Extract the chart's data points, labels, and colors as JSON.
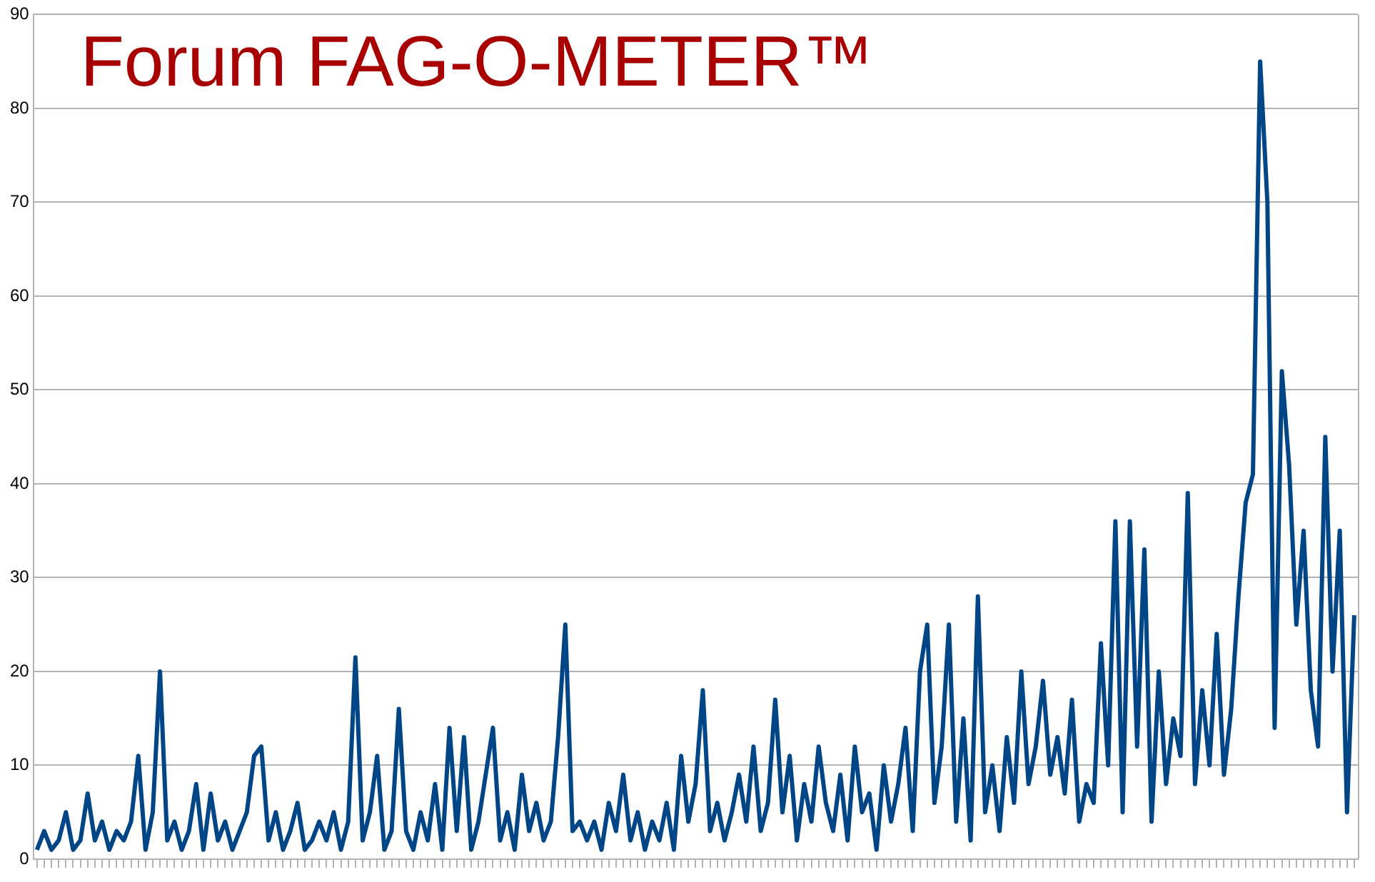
{
  "chart_data": {
    "type": "line",
    "title": "Forum FAG-O-METER™",
    "categories": [
      null,
      null,
      null,
      null,
      null,
      null,
      null,
      null,
      null,
      null,
      null,
      null,
      null,
      null,
      null,
      null,
      null,
      null,
      null,
      null,
      null,
      null,
      null,
      null,
      null,
      null,
      null,
      null,
      null,
      null,
      null,
      null,
      null,
      null,
      null,
      null,
      null,
      null,
      null,
      null,
      null,
      null,
      null,
      null,
      null,
      null,
      null,
      null,
      null,
      null,
      null,
      null,
      null,
      null,
      null,
      null,
      null,
      null,
      null,
      null,
      null,
      null,
      null,
      null,
      null,
      null,
      null,
      null,
      null,
      null,
      null,
      null,
      null,
      null,
      null,
      null,
      null,
      null,
      null,
      null,
      null,
      null,
      null,
      null,
      null,
      null,
      null,
      null,
      null,
      null,
      null,
      null,
      null,
      null,
      null,
      null,
      null,
      null,
      null,
      null,
      null,
      null,
      null,
      null,
      null,
      null,
      null,
      null,
      null,
      null,
      null,
      null,
      null,
      null,
      null,
      null,
      null,
      null,
      null,
      null,
      null,
      null,
      null,
      null,
      null,
      null,
      null,
      null,
      null,
      null,
      null,
      null,
      null,
      null,
      null,
      null,
      null,
      null,
      null,
      null,
      null,
      null,
      null,
      null,
      null,
      null,
      null,
      null,
      null,
      null,
      null,
      null,
      null,
      null,
      null,
      null,
      null,
      null,
      null,
      null,
      null,
      null,
      null,
      null,
      null,
      null,
      null,
      null,
      null,
      null,
      null,
      null,
      null,
      null,
      null,
      null,
      null,
      null,
      null,
      null,
      null,
      null,
      null
    ],
    "series": [
      {
        "color": "#004586",
        "values": [
          1,
          3,
          1,
          2,
          5,
          1,
          2,
          7,
          2,
          4,
          1,
          3,
          2,
          4,
          11,
          1,
          5,
          20,
          2,
          4,
          1,
          3,
          8,
          1,
          7,
          2,
          4,
          1,
          3,
          5,
          11,
          12,
          2,
          5,
          1,
          3,
          6,
          1,
          2,
          4,
          2,
          5,
          1,
          4,
          21.5,
          2,
          5,
          11,
          1,
          3,
          16,
          3,
          1,
          5,
          2,
          8,
          1,
          14,
          3,
          13,
          1,
          4,
          9,
          14,
          2,
          5,
          1,
          9,
          3,
          6,
          2,
          4,
          13,
          25,
          3,
          4,
          2,
          4,
          1,
          6,
          3,
          9,
          2,
          5,
          1,
          4,
          2,
          6,
          1,
          11,
          4,
          8,
          18,
          3,
          6,
          2,
          5,
          9,
          4,
          12,
          3,
          6,
          17,
          5,
          11,
          2,
          8,
          4,
          12,
          6,
          3,
          9,
          2,
          12,
          5,
          7,
          1,
          10,
          4,
          8,
          14,
          3,
          20,
          25,
          6,
          12,
          25,
          4,
          15,
          2,
          28,
          5,
          10,
          3,
          13,
          6,
          20,
          8,
          12,
          19,
          9,
          13,
          7,
          17,
          4,
          8,
          6,
          23,
          10,
          36,
          5,
          36,
          12,
          33,
          4,
          20,
          8,
          15,
          11,
          39,
          8,
          18,
          10,
          24,
          9,
          16,
          28,
          38,
          41,
          85,
          70,
          14,
          52,
          42,
          25,
          35,
          18,
          12,
          45,
          20,
          35,
          5,
          26
        ]
      }
    ],
    "ylim": [
      0,
      90
    ],
    "yticks": [
      0,
      10,
      20,
      30,
      40,
      50,
      60,
      70,
      80,
      90
    ],
    "grid": "y",
    "marker": "none",
    "line_style": "solid",
    "tick_labels": "y",
    "legend": false
  }
}
